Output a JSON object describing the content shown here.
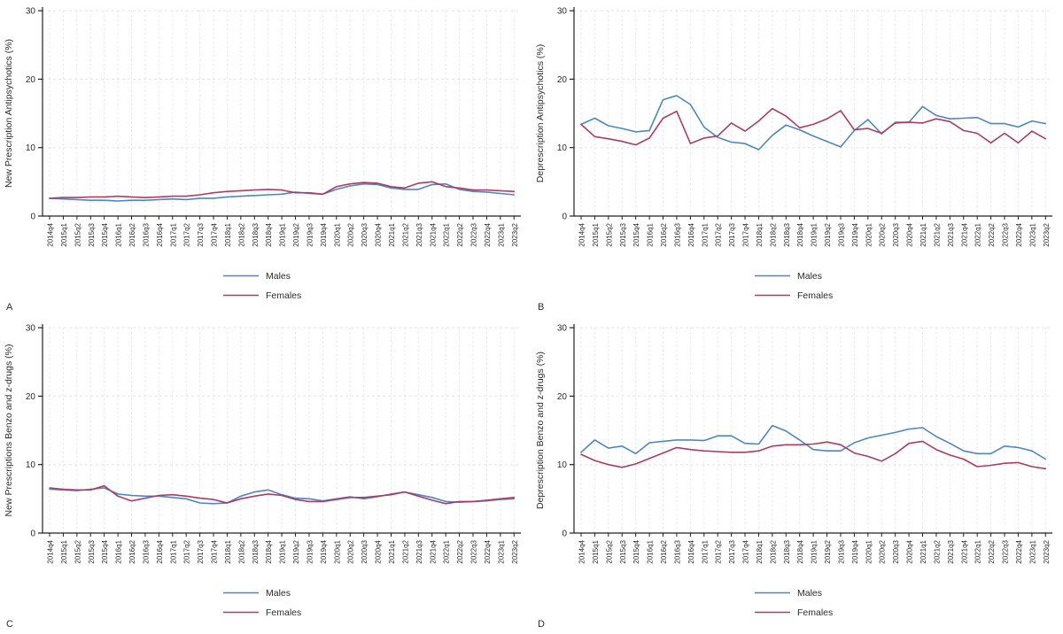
{
  "chart_data": {
    "type": "line",
    "grid": "dashed",
    "legend_position": "bottom-center",
    "ylim": [
      0,
      30
    ],
    "yticks": [
      0,
      10,
      20,
      30
    ],
    "colors": {
      "males": "#4d87c0",
      "females": "#ac3c62",
      "grid": "#e4e4e4",
      "axis": "#202020",
      "text": "#2b2b2b"
    },
    "legend": [
      "Males",
      "Females"
    ],
    "categories": [
      "2014q4",
      "2015q1",
      "2015q2",
      "2015q3",
      "2015q4",
      "2016q1",
      "2016q2",
      "2016q3",
      "2016q4",
      "2017q1",
      "2017q2",
      "2017q3",
      "2017q4",
      "2018q1",
      "2018q2",
      "2018q3",
      "2018q4",
      "2019q1",
      "2019q2",
      "2019q3",
      "2019q4",
      "2020q1",
      "2020q2",
      "2020q3",
      "2020q4",
      "2021q1",
      "2021q2",
      "2021q3",
      "2021q4",
      "2022q1",
      "2022q2",
      "2022q3",
      "2022q4",
      "2023q1",
      "2023q2"
    ],
    "panels": [
      {
        "label": "A",
        "ylabel": "New Prescription Antipsychotics (%)",
        "series": [
          {
            "name": "Males",
            "values": [
              2.6,
              2.5,
              2.4,
              2.3,
              2.3,
              2.2,
              2.3,
              2.3,
              2.4,
              2.5,
              2.4,
              2.6,
              2.6,
              2.8,
              2.9,
              3.0,
              3.1,
              3.2,
              3.5,
              3.3,
              3.2,
              3.9,
              4.4,
              4.7,
              4.6,
              4.1,
              3.9,
              3.9,
              4.6,
              4.7,
              3.9,
              3.6,
              3.5,
              3.3,
              3.1
            ]
          },
          {
            "name": "Females",
            "values": [
              2.6,
              2.7,
              2.7,
              2.8,
              2.8,
              2.9,
              2.8,
              2.7,
              2.8,
              2.9,
              2.9,
              3.1,
              3.4,
              3.6,
              3.7,
              3.8,
              3.9,
              3.8,
              3.4,
              3.4,
              3.2,
              4.3,
              4.7,
              4.9,
              4.8,
              4.3,
              4.1,
              4.8,
              5.0,
              4.3,
              4.1,
              3.8,
              3.8,
              3.7,
              3.6
            ]
          }
        ]
      },
      {
        "label": "B",
        "ylabel": "Deprescription Antipsychotics (%)",
        "series": [
          {
            "name": "Males",
            "values": [
              13.4,
              14.3,
              13.2,
              12.8,
              12.3,
              12.5,
              17.0,
              17.6,
              16.3,
              13.0,
              11.5,
              10.8,
              10.6,
              9.7,
              11.8,
              13.3,
              12.6,
              11.7,
              10.9,
              10.1,
              12.5,
              14.1,
              12.0,
              13.7,
              13.7,
              16.0,
              14.7,
              14.2,
              14.3,
              14.4,
              13.5,
              13.5,
              13.0,
              13.9,
              13.5
            ]
          },
          {
            "name": "Females",
            "values": [
              13.4,
              11.6,
              11.3,
              10.9,
              10.4,
              11.4,
              14.3,
              15.3,
              10.6,
              11.4,
              11.7,
              13.6,
              12.4,
              13.9,
              15.7,
              14.6,
              12.9,
              13.4,
              14.2,
              15.4,
              12.6,
              12.8,
              12.1,
              13.6,
              13.7,
              13.6,
              14.2,
              13.8,
              12.5,
              12.1,
              10.7,
              12.1,
              10.7,
              12.4,
              11.3
            ]
          }
        ]
      },
      {
        "label": "C",
        "ylabel": "New Prescriptions Benzo and z-drugs (%)",
        "series": [
          {
            "name": "Males",
            "values": [
              6.4,
              6.3,
              6.2,
              6.4,
              6.6,
              5.7,
              5.5,
              5.4,
              5.4,
              5.2,
              5.0,
              4.4,
              4.3,
              4.4,
              5.4,
              6.0,
              6.3,
              5.6,
              5.1,
              5.0,
              4.7,
              5.0,
              5.3,
              5.0,
              5.3,
              5.7,
              6.0,
              5.6,
              5.2,
              4.6,
              4.5,
              4.6,
              4.7,
              4.9,
              5.0
            ]
          },
          {
            "name": "Females",
            "values": [
              6.6,
              6.4,
              6.3,
              6.3,
              6.9,
              5.4,
              4.7,
              5.1,
              5.5,
              5.6,
              5.4,
              5.1,
              4.9,
              4.4,
              5.0,
              5.4,
              5.7,
              5.5,
              4.9,
              4.6,
              4.6,
              4.9,
              5.2,
              5.2,
              5.4,
              5.6,
              6.0,
              5.4,
              4.8,
              4.3,
              4.6,
              4.6,
              4.8,
              5.0,
              5.2
            ]
          }
        ]
      },
      {
        "label": "D",
        "ylabel": "Deprescription Benzo and z-drugs (%)",
        "series": [
          {
            "name": "Males",
            "values": [
              11.8,
              13.6,
              12.4,
              12.7,
              11.6,
              13.2,
              13.4,
              13.6,
              13.6,
              13.5,
              14.2,
              14.2,
              13.1,
              13.0,
              15.7,
              14.9,
              13.6,
              12.2,
              12.0,
              12.0,
              13.2,
              13.9,
              14.3,
              14.7,
              15.2,
              15.4,
              14.1,
              13.1,
              12.0,
              11.6,
              11.6,
              12.7,
              12.5,
              12.0,
              10.8
            ]
          },
          {
            "name": "Females",
            "values": [
              11.5,
              10.6,
              10.0,
              9.6,
              10.1,
              10.9,
              11.7,
              12.5,
              12.2,
              12.0,
              11.9,
              11.8,
              11.8,
              12.0,
              12.7,
              12.9,
              12.9,
              13.0,
              13.3,
              12.9,
              11.7,
              11.2,
              10.5,
              11.6,
              13.1,
              13.4,
              12.2,
              11.4,
              10.8,
              9.7,
              9.9,
              10.2,
              10.3,
              9.7,
              9.4
            ]
          }
        ]
      }
    ]
  }
}
